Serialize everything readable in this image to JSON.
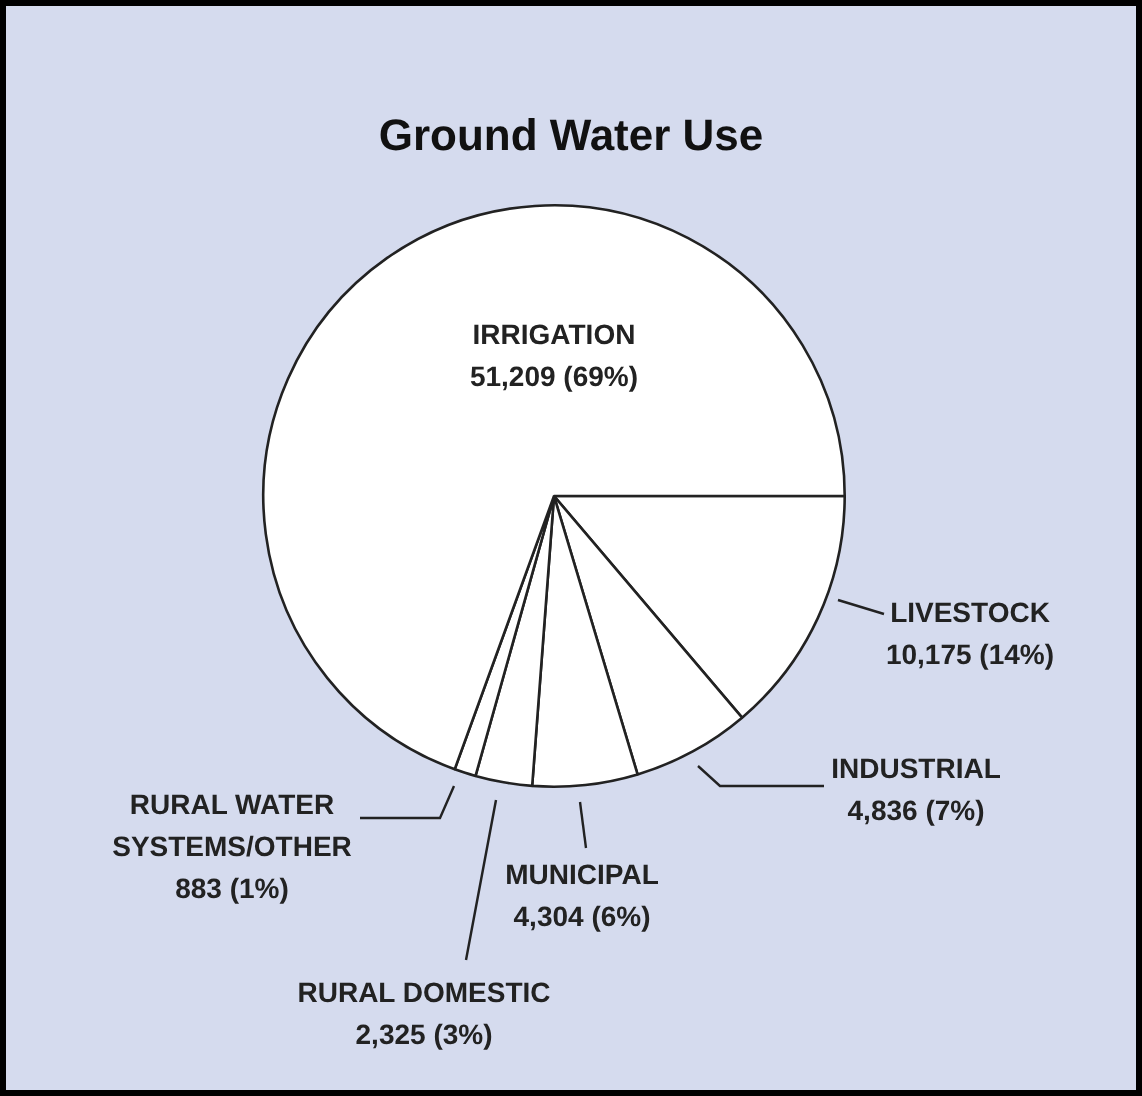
{
  "chart_data": {
    "type": "pie",
    "title": "Ground Water Use",
    "categories": [
      "LIVESTOCK",
      "INDUSTRIAL",
      "MUNICIPAL",
      "RURAL DOMESTIC",
      "RURAL WATER SYSTEMS/OTHER",
      "IRRIGATION"
    ],
    "values": [
      10175,
      4836,
      4304,
      2325,
      883,
      51209
    ],
    "value_labels": [
      "10,175 (14%)",
      "4,836 (7%)",
      "4,304 (6%)",
      "2,325 (3%)",
      "883 (1%)",
      "51,209 (69%)"
    ],
    "colors": [
      "#ffffff",
      "#ffffff",
      "#ffffff",
      "#ffffff",
      "#ffffff",
      "#ffffff"
    ],
    "legend": false
  }
}
